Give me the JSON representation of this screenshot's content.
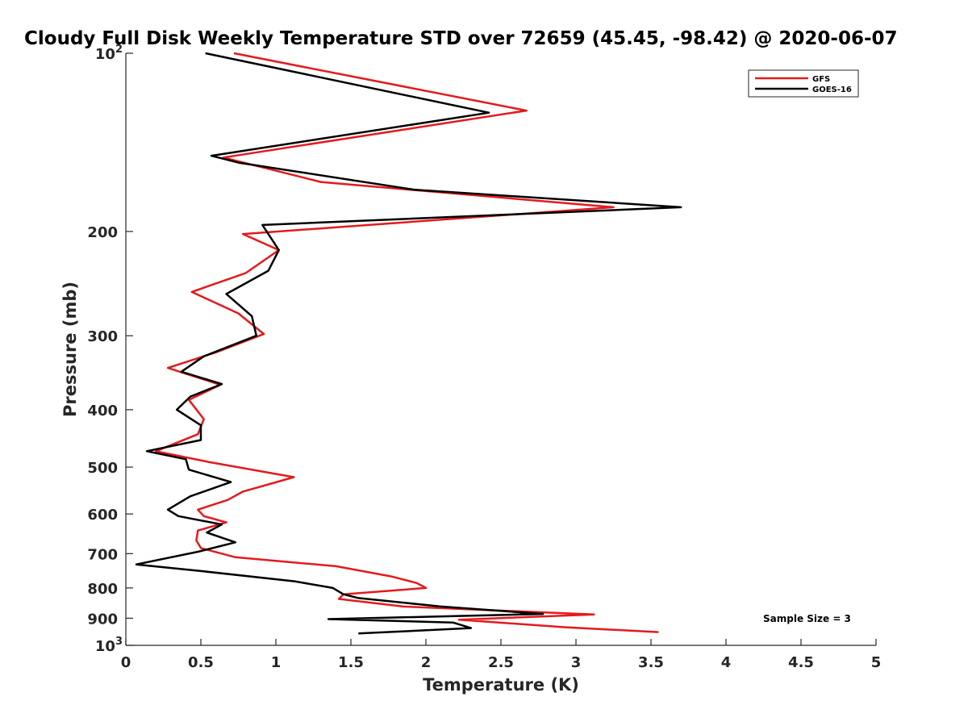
{
  "chart_data": {
    "type": "line",
    "title": "Cloudy Full Disk Weekly Temperature STD over 72659 (45.45, -98.42) @ 2020-06-07",
    "xlabel": "Temperature (K)",
    "ylabel": "Pressure (mb)",
    "xlim": [
      0,
      5
    ],
    "ylim": [
      100,
      1000
    ],
    "y_scale": "log",
    "y_reversed": true,
    "x_ticks": [
      "0",
      "0.5",
      "1",
      "1.5",
      "2",
      "2.5",
      "3",
      "3.5",
      "4",
      "4.5",
      "5"
    ],
    "y_ticks": [
      {
        "value": 100,
        "label": "10",
        "sup": "2"
      },
      {
        "value": 200,
        "label": "200",
        "sup": ""
      },
      {
        "value": 300,
        "label": "300",
        "sup": ""
      },
      {
        "value": 400,
        "label": "400",
        "sup": ""
      },
      {
        "value": 500,
        "label": "500",
        "sup": ""
      },
      {
        "value": 600,
        "label": "600",
        "sup": ""
      },
      {
        "value": 700,
        "label": "700",
        "sup": ""
      },
      {
        "value": 800,
        "label": "800",
        "sup": ""
      },
      {
        "value": 900,
        "label": "900",
        "sup": ""
      },
      {
        "value": 1000,
        "label": "10",
        "sup": "3"
      }
    ],
    "grid": false,
    "legend_position": "top-right",
    "series": [
      {
        "name": "GFS",
        "color": "#e41a1c",
        "points": [
          [
            0.72,
            100
          ],
          [
            2.67,
            125
          ],
          [
            0.65,
            150
          ],
          [
            1.3,
            165
          ],
          [
            3.25,
            182
          ],
          [
            0.78,
            202
          ],
          [
            1.02,
            215
          ],
          [
            0.8,
            235
          ],
          [
            0.44,
            253
          ],
          [
            0.75,
            275
          ],
          [
            0.92,
            298
          ],
          [
            0.6,
            320
          ],
          [
            0.28,
            340
          ],
          [
            0.63,
            363
          ],
          [
            0.42,
            385
          ],
          [
            0.52,
            415
          ],
          [
            0.48,
            440
          ],
          [
            0.2,
            470
          ],
          [
            0.55,
            490
          ],
          [
            1.12,
            520
          ],
          [
            0.78,
            550
          ],
          [
            0.68,
            568
          ],
          [
            0.48,
            590
          ],
          [
            0.52,
            605
          ],
          [
            0.67,
            620
          ],
          [
            0.48,
            640
          ],
          [
            0.47,
            665
          ],
          [
            0.5,
            685
          ],
          [
            0.73,
            710
          ],
          [
            1.4,
            735
          ],
          [
            1.77,
            765
          ],
          [
            1.94,
            785
          ],
          [
            2.0,
            800
          ],
          [
            1.45,
            820
          ],
          [
            1.42,
            835
          ],
          [
            1.85,
            860
          ],
          [
            3.12,
            887
          ],
          [
            2.22,
            905
          ],
          [
            2.93,
            932
          ],
          [
            3.55,
            950
          ]
        ]
      },
      {
        "name": "GOES-16",
        "color": "#000000",
        "points": [
          [
            0.53,
            100
          ],
          [
            2.42,
            126
          ],
          [
            0.57,
            149
          ],
          [
            0.75,
            153
          ],
          [
            1.92,
            170
          ],
          [
            3.7,
            182
          ],
          [
            0.91,
            195
          ],
          [
            1.02,
            215
          ],
          [
            0.95,
            233
          ],
          [
            0.67,
            255
          ],
          [
            0.84,
            278
          ],
          [
            0.87,
            300
          ],
          [
            0.52,
            325
          ],
          [
            0.37,
            345
          ],
          [
            0.64,
            362
          ],
          [
            0.43,
            380
          ],
          [
            0.34,
            400
          ],
          [
            0.5,
            425
          ],
          [
            0.5,
            450
          ],
          [
            0.14,
            470
          ],
          [
            0.4,
            485
          ],
          [
            0.42,
            505
          ],
          [
            0.7,
            530
          ],
          [
            0.43,
            560
          ],
          [
            0.28,
            590
          ],
          [
            0.35,
            605
          ],
          [
            0.64,
            625
          ],
          [
            0.54,
            645
          ],
          [
            0.73,
            670
          ],
          [
            0.48,
            695
          ],
          [
            0.07,
            730
          ],
          [
            0.52,
            750
          ],
          [
            1.13,
            780
          ],
          [
            1.38,
            800
          ],
          [
            1.45,
            820
          ],
          [
            1.55,
            832
          ],
          [
            2.1,
            860
          ],
          [
            2.78,
            885
          ],
          [
            1.35,
            903
          ],
          [
            2.18,
            915
          ],
          [
            2.3,
            935
          ],
          [
            1.55,
            955
          ]
        ]
      }
    ],
    "annotations": [
      "Sample Size = 3"
    ]
  }
}
